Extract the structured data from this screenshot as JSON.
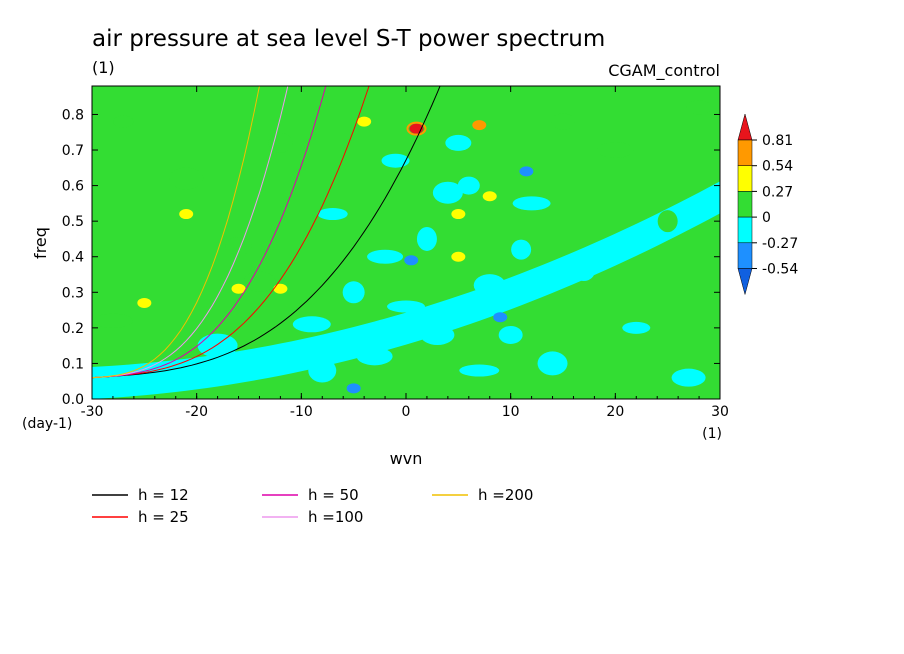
{
  "chart_data": {
    "type": "heatmap",
    "title": "air pressure at sea level S-T power spectrum",
    "subtitle_left": "(1)",
    "subtitle_right": "CGAM_control",
    "xlabel": "wvn",
    "ylabel": "freq",
    "x_unit": "(1)",
    "y_unit": "(day-1)",
    "xlim": [
      -30,
      30
    ],
    "ylim": [
      0,
      0.88
    ],
    "x_ticks": [
      -30,
      -20,
      -10,
      0,
      10,
      20,
      30
    ],
    "y_ticks": [
      0.0,
      0.1,
      0.2,
      0.3,
      0.4,
      0.5,
      0.6,
      0.7,
      0.8
    ],
    "x_tick_labels": [
      "-30",
      "-20",
      "-10",
      "0",
      "10",
      "20",
      "30"
    ],
    "y_tick_labels": [
      "0.0",
      "0.1",
      "0.2",
      "0.3",
      "0.4",
      "0.5",
      "0.6",
      "0.7",
      "0.8"
    ],
    "colorbar": {
      "levels": [
        "0.81",
        "0.54",
        "0.27",
        "0",
        "-0.27",
        "-0.54"
      ],
      "colors": [
        "#e8141c",
        "#ff9900",
        "#ffff00",
        "#33dd33",
        "#00ffff",
        "#1e90ff",
        "#1060e0"
      ]
    },
    "background_level_color": "#33dd33",
    "patches": [
      {
        "x": -27,
        "y": 0.78,
        "v": 0.1
      },
      {
        "x": -21,
        "y": 0.62,
        "v": 0.1
      },
      {
        "x": -16,
        "y": 0.43,
        "v": 0.1
      },
      {
        "x": -28,
        "y": 0.22,
        "v": 0.1
      },
      {
        "x": -24,
        "y": 0.05,
        "v": -0.2
      },
      {
        "x": -12,
        "y": 0.72,
        "v": 0.1
      },
      {
        "x": -9,
        "y": 0.21,
        "v": -0.2
      },
      {
        "x": -7,
        "y": 0.52,
        "v": -0.2
      },
      {
        "x": -5,
        "y": 0.3,
        "v": -0.2
      },
      {
        "x": -3,
        "y": 0.12,
        "v": -0.2
      },
      {
        "x": -1,
        "y": 0.67,
        "v": -0.2
      },
      {
        "x": 2,
        "y": 0.45,
        "v": -0.2
      },
      {
        "x": 3,
        "y": 0.18,
        "v": -0.2
      },
      {
        "x": 5,
        "y": 0.72,
        "v": -0.2
      },
      {
        "x": 7,
        "y": 0.08,
        "v": -0.2
      },
      {
        "x": 8,
        "y": 0.32,
        "v": -0.2
      },
      {
        "x": 10,
        "y": 0.18,
        "v": -0.2
      },
      {
        "x": 12,
        "y": 0.55,
        "v": -0.2
      },
      {
        "x": 14,
        "y": 0.1,
        "v": -0.2
      },
      {
        "x": 17,
        "y": 0.36,
        "v": -0.2
      },
      {
        "x": 20,
        "y": 0.7,
        "v": 0.1
      },
      {
        "x": 22,
        "y": 0.2,
        "v": -0.2
      },
      {
        "x": 25,
        "y": 0.5,
        "v": 0.1
      },
      {
        "x": 27,
        "y": 0.06,
        "v": -0.2
      },
      {
        "x": 28,
        "y": 0.82,
        "v": 0.1
      },
      {
        "x": -18,
        "y": 0.15,
        "v": -0.2
      },
      {
        "x": -14,
        "y": 0.33,
        "v": 0.1
      },
      {
        "x": 15,
        "y": 0.78,
        "v": 0.1
      },
      {
        "x": 0,
        "y": 0.26,
        "v": -0.2
      },
      {
        "x": 4,
        "y": 0.58,
        "v": -0.2
      },
      {
        "x": 6,
        "y": 0.6,
        "v": -0.2
      },
      {
        "x": -2,
        "y": 0.4,
        "v": -0.2
      },
      {
        "x": -8,
        "y": 0.08,
        "v": -0.2
      },
      {
        "x": 11,
        "y": 0.42,
        "v": -0.2
      }
    ],
    "highlights": [
      {
        "x": 1.0,
        "y": 0.76,
        "v": 0.81
      },
      {
        "x": 7.0,
        "y": 0.77,
        "v": 0.54
      },
      {
        "x": 5.0,
        "y": 0.52,
        "v": 0.27
      },
      {
        "x": 8.0,
        "y": 0.57,
        "v": 0.27
      },
      {
        "x": 5.0,
        "y": 0.4,
        "v": 0.27
      },
      {
        "x": -16.0,
        "y": 0.31,
        "v": 0.27
      },
      {
        "x": -12.0,
        "y": 0.31,
        "v": 0.27
      },
      {
        "x": -21.0,
        "y": 0.52,
        "v": 0.27
      },
      {
        "x": -25.0,
        "y": 0.27,
        "v": 0.27
      },
      {
        "x": -4.0,
        "y": 0.78,
        "v": 0.27
      },
      {
        "x": 0.5,
        "y": 0.39,
        "v": -0.54
      },
      {
        "x": 11.5,
        "y": 0.64,
        "v": -0.54
      },
      {
        "x": -5.0,
        "y": 0.03,
        "v": -0.54
      },
      {
        "x": 9.0,
        "y": 0.23,
        "v": -0.54
      }
    ],
    "series": [
      {
        "name": "h = 12",
        "h": 12,
        "color": "#000000"
      },
      {
        "name": "h = 25",
        "h": 25,
        "color": "#ff0000"
      },
      {
        "name": "h = 50",
        "h": 50,
        "color": "#dd00aa"
      },
      {
        "name": "h =100",
        "h": 100,
        "color": "#ee99ee"
      },
      {
        "name": "h =200",
        "h": 200,
        "color": "#f0c000"
      }
    ]
  }
}
